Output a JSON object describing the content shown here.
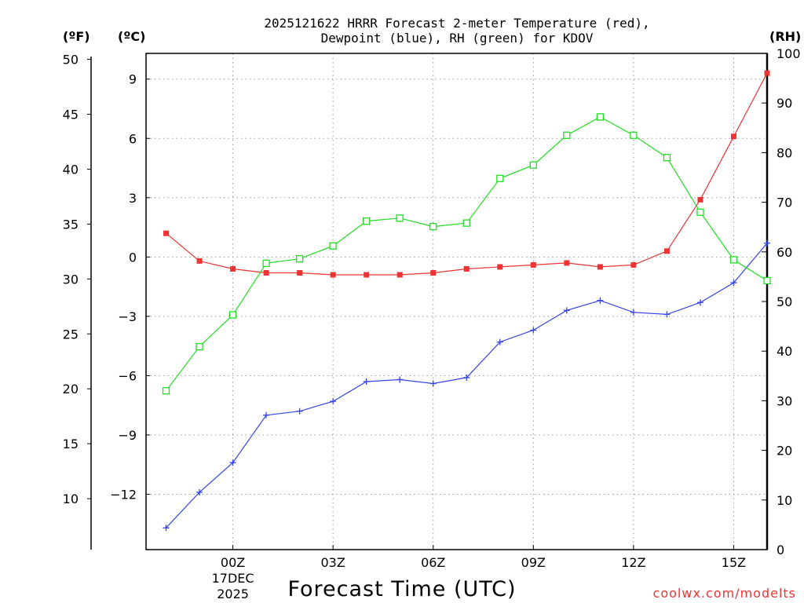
{
  "chart_data": {
    "type": "line",
    "title_line1": "2025121622 HRRR Forecast 2-meter Temperature (red),",
    "title_line2": "Dewpoint (blue), RH (green) for KDOV",
    "xlabel": "Forecast Time (UTC)",
    "credit": "coolwx.com/modelts",
    "left_f_unit": "(ºF)",
    "left_c_unit": "(ºC)",
    "right_unit": "(RH)",
    "x_hours": [
      -2,
      -1,
      0,
      1,
      2,
      3,
      4,
      5,
      6,
      7,
      8,
      9,
      10,
      11,
      12,
      13,
      14,
      15,
      16
    ],
    "x_ticks": [
      {
        "hour": 0,
        "label": "00Z",
        "sub1": "17DEC",
        "sub2": "2025"
      },
      {
        "hour": 3,
        "label": "03Z"
      },
      {
        "hour": 6,
        "label": "06Z"
      },
      {
        "hour": 9,
        "label": "09Z"
      },
      {
        "hour": 12,
        "label": "12Z"
      },
      {
        "hour": 15,
        "label": "15Z"
      }
    ],
    "celsius_range": [
      -14.8,
      10.3
    ],
    "celsius_ticks": [
      {
        "v": 9,
        "label": "9"
      },
      {
        "v": 6,
        "label": "6"
      },
      {
        "v": 3,
        "label": "3"
      },
      {
        "v": 0,
        "label": "0"
      },
      {
        "v": -3,
        "label": "−3"
      },
      {
        "v": -6,
        "label": "−6"
      },
      {
        "v": -9,
        "label": "−9"
      },
      {
        "v": -12,
        "label": "−12"
      }
    ],
    "fahrenheit_ticks": [
      {
        "v": 50,
        "label": "50"
      },
      {
        "v": 45,
        "label": "45"
      },
      {
        "v": 40,
        "label": "40"
      },
      {
        "v": 35,
        "label": "35"
      },
      {
        "v": 30,
        "label": "30"
      },
      {
        "v": 25,
        "label": "25"
      },
      {
        "v": 20,
        "label": "20"
      },
      {
        "v": 15,
        "label": "15"
      },
      {
        "v": 10,
        "label": "10"
      }
    ],
    "rh_range": [
      0,
      100
    ],
    "rh_ticks": [
      {
        "v": 100,
        "label": "100"
      },
      {
        "v": 90,
        "label": "90"
      },
      {
        "v": 80,
        "label": "80"
      },
      {
        "v": 70,
        "label": "70"
      },
      {
        "v": 60,
        "label": "60"
      },
      {
        "v": 50,
        "label": "50"
      },
      {
        "v": 40,
        "label": "40"
      },
      {
        "v": 30,
        "label": "30"
      },
      {
        "v": 20,
        "label": "20"
      },
      {
        "v": 10,
        "label": "10"
      },
      {
        "v": 0,
        "label": "0"
      }
    ],
    "series": [
      {
        "name": "Temperature",
        "axis": "celsius",
        "color": "#ee3333",
        "marker": "filled-square",
        "values": [
          1.2,
          -0.2,
          -0.6,
          -0.8,
          -0.8,
          -0.9,
          -0.9,
          -0.9,
          -0.8,
          -0.6,
          -0.5,
          -0.4,
          -0.3,
          -0.5,
          -0.4,
          0.3,
          2.9,
          6.1,
          9.3
        ]
      },
      {
        "name": "Dewpoint",
        "axis": "celsius",
        "color": "#3344ee",
        "marker": "plus",
        "values": [
          -13.7,
          -11.9,
          -10.4,
          -8.0,
          -7.8,
          -7.3,
          -6.3,
          -6.2,
          -6.4,
          -6.1,
          -4.3,
          -3.7,
          -2.7,
          -2.2,
          -2.8,
          -2.9,
          -2.3,
          -1.3,
          0.7
        ]
      },
      {
        "name": "RH",
        "axis": "rh",
        "color": "#22dd22",
        "marker": "open-square",
        "values": [
          32.0,
          40.9,
          47.3,
          57.7,
          58.6,
          61.2,
          66.2,
          66.8,
          65.1,
          65.8,
          74.8,
          77.5,
          83.5,
          87.2,
          83.5,
          79.0,
          68.0,
          58.4,
          54.2
        ]
      }
    ]
  }
}
